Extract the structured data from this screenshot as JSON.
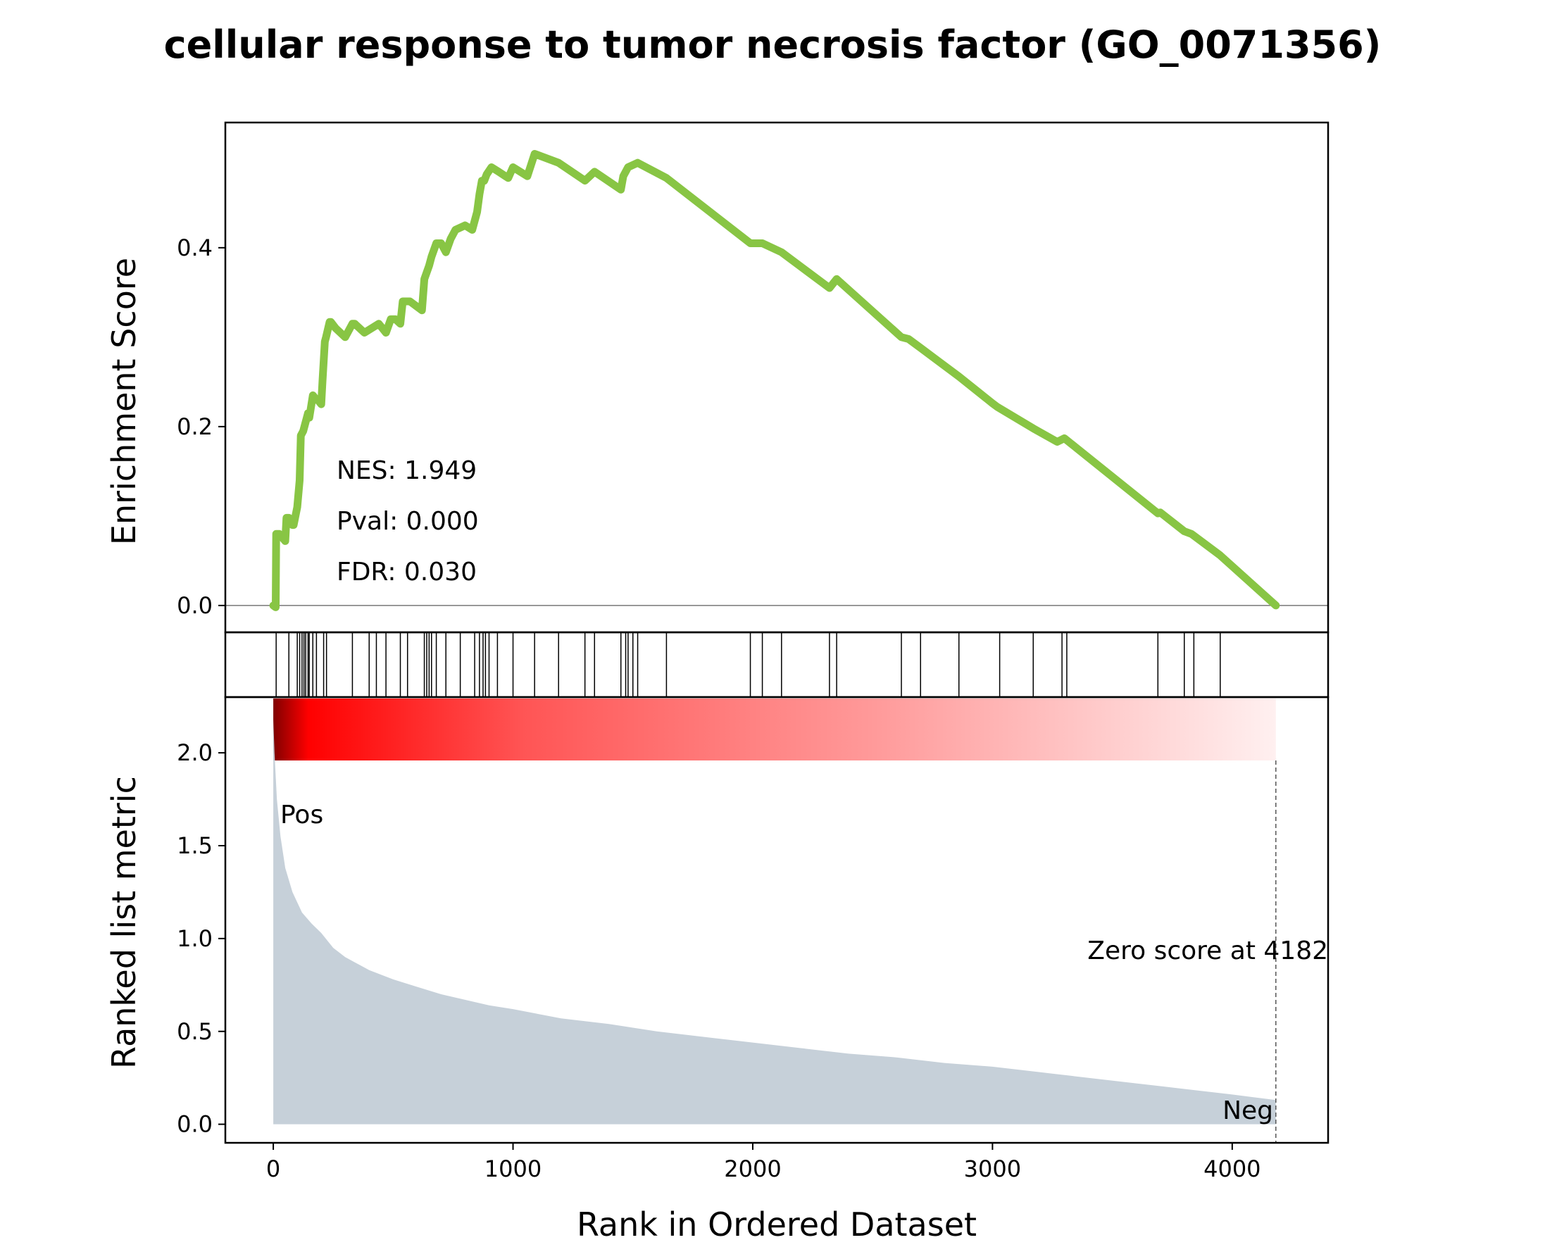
{
  "chart_data": {
    "type": "line",
    "title": "cellular response to tumor necrosis factor (GO_0071356)",
    "xlabel": "Rank in Ordered Dataset",
    "xlim": [
      -200,
      4400
    ],
    "x_ticks": [
      "0",
      "1000",
      "2000",
      "3000",
      "4000"
    ],
    "x_tick_values": [
      0,
      1000,
      2000,
      3000,
      4000
    ],
    "enrichment_panel": {
      "ylabel": "Enrichment Score",
      "ylim": [
        -0.03,
        0.54
      ],
      "y_ticks": [
        "0.0",
        "0.2",
        "0.4"
      ],
      "y_tick_values": [
        0.0,
        0.2,
        0.4
      ],
      "line_color": "#88c544",
      "x": [
        0,
        10,
        12,
        25,
        50,
        55,
        65,
        80,
        85,
        100,
        110,
        115,
        125,
        145,
        150,
        165,
        180,
        185,
        200,
        205,
        215,
        220,
        235,
        240,
        260,
        300,
        330,
        340,
        380,
        440,
        470,
        490,
        510,
        530,
        540,
        570,
        620,
        630,
        650,
        660,
        680,
        700,
        720,
        740,
        760,
        800,
        830,
        850,
        860,
        870,
        880,
        890,
        910,
        940,
        980,
        1000,
        1060,
        1090,
        1190,
        1300,
        1340,
        1450,
        1460,
        1480,
        1520,
        1640,
        1990,
        2040,
        2120,
        2320,
        2350,
        2620,
        2650,
        2700,
        2860,
        3000,
        3020,
        3170,
        3270,
        3300,
        3690,
        3700,
        3800,
        3830,
        3840,
        3940,
        3950,
        4182
      ],
      "y": [
        0.0,
        -0.002,
        0.08,
        0.08,
        0.072,
        0.098,
        0.098,
        0.09,
        0.09,
        0.11,
        0.14,
        0.19,
        0.195,
        0.215,
        0.21,
        0.235,
        0.23,
        0.23,
        0.225,
        0.25,
        0.295,
        0.3,
        0.317,
        0.317,
        0.31,
        0.3,
        0.315,
        0.315,
        0.305,
        0.315,
        0.305,
        0.32,
        0.32,
        0.315,
        0.34,
        0.34,
        0.33,
        0.365,
        0.38,
        0.39,
        0.405,
        0.405,
        0.395,
        0.41,
        0.42,
        0.425,
        0.42,
        0.44,
        0.46,
        0.475,
        0.475,
        0.482,
        0.49,
        0.485,
        0.478,
        0.49,
        0.48,
        0.505,
        0.495,
        0.475,
        0.485,
        0.465,
        0.48,
        0.49,
        0.495,
        0.478,
        0.405,
        0.405,
        0.395,
        0.355,
        0.365,
        0.3,
        0.298,
        0.288,
        0.256,
        0.226,
        0.222,
        0.198,
        0.183,
        0.187,
        0.103,
        0.104,
        0.083,
        0.08,
        0.078,
        0.058,
        0.056,
        0.0
      ],
      "annotations": [
        "NES: 1.949",
        "Pval: 0.000",
        "FDR: 0.030"
      ]
    },
    "hits_panel": {
      "hit_ranks": [
        12,
        65,
        100,
        110,
        120,
        128,
        135,
        145,
        150,
        165,
        180,
        210,
        222,
        330,
        400,
        430,
        470,
        530,
        560,
        630,
        640,
        650,
        660,
        680,
        720,
        780,
        840,
        860,
        875,
        885,
        900,
        935,
        1000,
        1090,
        1190,
        1300,
        1340,
        1450,
        1470,
        1480,
        1500,
        1520,
        1640,
        1990,
        2040,
        2120,
        2320,
        2350,
        2620,
        2700,
        2860,
        3030,
        3170,
        3290,
        3310,
        3690,
        3800,
        3840,
        3950
      ]
    },
    "metric_panel": {
      "ylabel": "Ranked list metric",
      "ylim": [
        -0.1,
        2.3
      ],
      "y_ticks": [
        "0.0",
        "0.5",
        "1.0",
        "1.5",
        "2.0"
      ],
      "y_tick_values": [
        0.0,
        0.5,
        1.0,
        1.5,
        2.0
      ],
      "fill_color": "#c6d0d9",
      "x": [
        0,
        5,
        15,
        30,
        50,
        80,
        120,
        160,
        200,
        250,
        300,
        400,
        500,
        600,
        700,
        800,
        900,
        1000,
        1200,
        1400,
        1600,
        1800,
        2000,
        2200,
        2400,
        2600,
        2800,
        3000,
        3200,
        3400,
        3600,
        3800,
        4000,
        4182
      ],
      "values": [
        2.18,
        2.0,
        1.75,
        1.55,
        1.38,
        1.25,
        1.14,
        1.08,
        1.03,
        0.95,
        0.9,
        0.83,
        0.78,
        0.74,
        0.7,
        0.67,
        0.64,
        0.62,
        0.57,
        0.54,
        0.5,
        0.47,
        0.44,
        0.41,
        0.38,
        0.36,
        0.33,
        0.31,
        0.28,
        0.25,
        0.22,
        0.19,
        0.16,
        0.13
      ],
      "pos_label": "Pos",
      "neg_label": "Neg",
      "pos_color": "#ff0000",
      "neg_color": "#0000ff",
      "zero_score_text": "Zero score at 4182",
      "zero_score_rank": 4182
    }
  }
}
